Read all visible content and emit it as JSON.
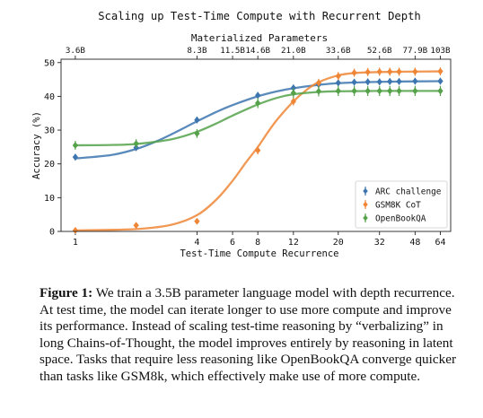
{
  "chart_data": {
    "type": "line",
    "title": "Scaling up Test-Time Compute with Recurrent Depth",
    "top_axis_label": "Materialized Parameters",
    "top_ticks": [
      {
        "x": 1,
        "label": "3.6B"
      },
      {
        "x": 4,
        "label": "8.3B"
      },
      {
        "x": 6,
        "label": "11.5B"
      },
      {
        "x": 8,
        "label": "14.6B"
      },
      {
        "x": 12,
        "label": "21.0B"
      },
      {
        "x": 20,
        "label": "33.6B"
      },
      {
        "x": 32,
        "label": "52.6B"
      },
      {
        "x": 48,
        "label": "77.9B"
      },
      {
        "x": 64,
        "label": "103B"
      }
    ],
    "xlabel": "Test-Time Compute Recurrence",
    "ylabel": "Accuracy (%)",
    "x_scale": "log",
    "xlim": [
      0.85,
      72
    ],
    "ylim": [
      0,
      51
    ],
    "x_ticks": [
      1,
      4,
      6,
      8,
      12,
      20,
      32,
      48,
      64
    ],
    "y_ticks": [
      0,
      10,
      20,
      30,
      40,
      50
    ],
    "grid": false,
    "legend_position": "bottom-right",
    "series": [
      {
        "name": "ARC challenge",
        "color": "#3c75af",
        "x": [
          1,
          2,
          4,
          8,
          12,
          16,
          20,
          24,
          28,
          32,
          36,
          40,
          48,
          64
        ],
        "y": [
          22,
          24.8,
          33,
          40.3,
          42.5,
          43.5,
          44,
          44.2,
          44.3,
          44.3,
          44.4,
          44.4,
          44.5,
          44.5
        ],
        "err": [
          1,
          1,
          1,
          1,
          1,
          1,
          1,
          1,
          1,
          1,
          1,
          1,
          1,
          1
        ],
        "fit": [
          [
            1,
            21.6
          ],
          [
            1.5,
            22.6
          ],
          [
            2,
            24.4
          ],
          [
            2.5,
            26.6
          ],
          [
            3,
            28.8
          ],
          [
            4,
            32.6
          ],
          [
            5,
            35.4
          ],
          [
            6,
            37.4
          ],
          [
            8,
            40
          ],
          [
            10,
            41.5
          ],
          [
            12,
            42.4
          ],
          [
            16,
            43.4
          ],
          [
            20,
            43.9
          ],
          [
            32,
            44.3
          ],
          [
            64,
            44.5
          ]
        ]
      },
      {
        "name": "GSM8K CoT",
        "color": "#ef8636",
        "x": [
          1,
          2,
          4,
          8,
          12,
          16,
          20,
          24,
          28,
          32,
          36,
          40,
          48,
          64
        ],
        "y": [
          0.3,
          1.8,
          3,
          24,
          38.5,
          44,
          46,
          47,
          47.2,
          47.3,
          47.3,
          47.3,
          47.3,
          47.4
        ],
        "err": [
          0.6,
          0.6,
          0.8,
          1.2,
          1.2,
          1.2,
          1.2,
          1.2,
          1.2,
          1.2,
          1.2,
          1.2,
          1.2,
          1.2
        ],
        "fit": [
          [
            1,
            0.3
          ],
          [
            2,
            0.7
          ],
          [
            3,
            2
          ],
          [
            4,
            4.8
          ],
          [
            5,
            9.5
          ],
          [
            6,
            15
          ],
          [
            7,
            20.5
          ],
          [
            8,
            25
          ],
          [
            9,
            29.5
          ],
          [
            10,
            33.2
          ],
          [
            12,
            38.5
          ],
          [
            14,
            42
          ],
          [
            16,
            44.2
          ],
          [
            20,
            46.2
          ],
          [
            24,
            46.9
          ],
          [
            32,
            47.2
          ],
          [
            64,
            47.4
          ]
        ]
      },
      {
        "name": "OpenBookQA",
        "color": "#55a24a",
        "x": [
          1,
          2,
          4,
          8,
          12,
          16,
          20,
          24,
          28,
          32,
          36,
          40,
          48,
          64
        ],
        "y": [
          25.5,
          26,
          29,
          38,
          41,
          41.5,
          41.6,
          41.6,
          41.6,
          41.6,
          41.6,
          41.6,
          41.6,
          41.6
        ],
        "err": [
          1.3,
          1.3,
          1.3,
          1.5,
          1.5,
          1.5,
          1.5,
          1.5,
          1.5,
          1.5,
          1.5,
          1.5,
          1.5,
          1.5
        ],
        "fit": [
          [
            1,
            25.5
          ],
          [
            1.5,
            25.6
          ],
          [
            2,
            25.9
          ],
          [
            3,
            27.3
          ],
          [
            4,
            29.5
          ],
          [
            5,
            32
          ],
          [
            6,
            34.3
          ],
          [
            8,
            37.6
          ],
          [
            10,
            39.6
          ],
          [
            12,
            40.6
          ],
          [
            16,
            41.3
          ],
          [
            20,
            41.5
          ],
          [
            32,
            41.6
          ],
          [
            64,
            41.6
          ]
        ]
      }
    ]
  },
  "caption": {
    "label": "Figure 1:",
    "text": "We train a 3.5B parameter language model with depth recurrence. At test time, the model can iterate longer to use more compute and improve its performance. Instead of scaling test-time reasoning by “verbalizing” in long Chains-of-Thought, the model improves entirely by reasoning in latent space. Tasks that require less reasoning like OpenBookQA converge quicker than tasks like GSM8k, which effectively make use of more compute."
  }
}
